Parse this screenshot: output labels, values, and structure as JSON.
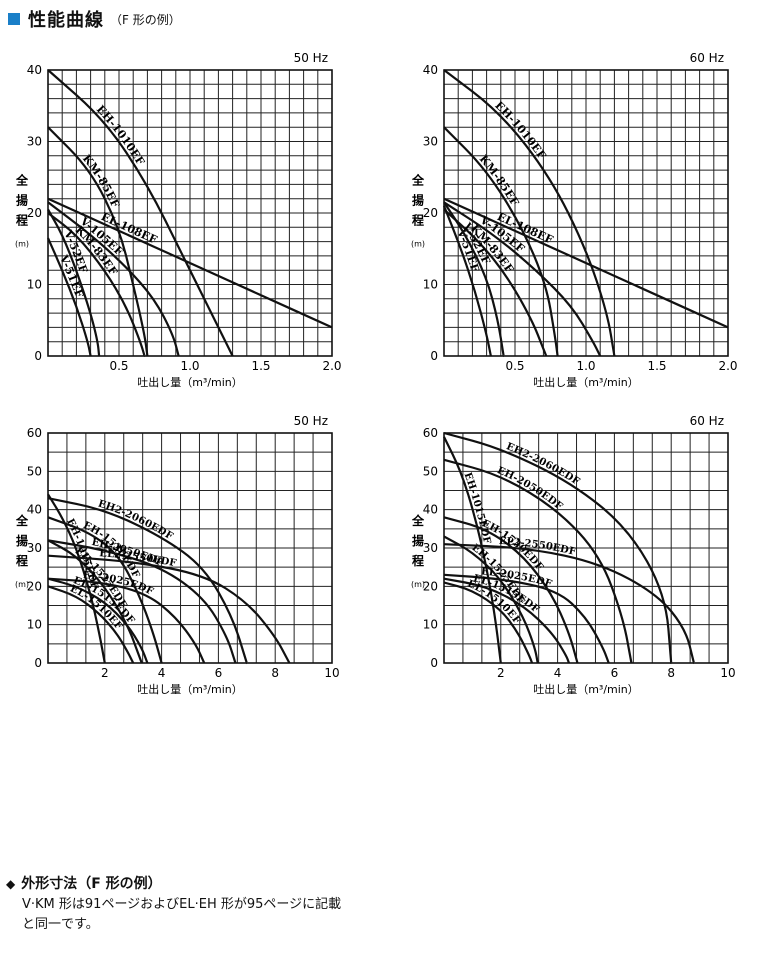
{
  "header": {
    "title": "性能曲線",
    "subtitle": "（F 形の例）",
    "icon": "blue-square-icon",
    "icon_color": "#1a7fc8"
  },
  "footer": {
    "bullet": "◆",
    "title": "外形寸法（F 形の例）",
    "line1": "V·KM 形は91ページおよびEL·EH 形が95ページに記載",
    "line2": "と同一です。"
  },
  "chart_data": [
    {
      "type": "line",
      "hz": "50 Hz",
      "xlabel": "吐出し量（m³/min）",
      "ylabel": "全揚程",
      "yunit": "(m)",
      "xlim": [
        0,
        2.0
      ],
      "ylim": [
        0,
        40
      ],
      "xticks": [
        "0.5",
        "1.0",
        "1.5",
        "2.0"
      ],
      "yticks": [
        "0",
        "10",
        "20",
        "30",
        "40"
      ],
      "grid": true,
      "series": [
        {
          "name": "KM-85EF",
          "points": [
            [
              0,
              32
            ],
            [
              0.3,
              26
            ],
            [
              0.5,
              18
            ],
            [
              0.6,
              10
            ],
            [
              0.68,
              3
            ],
            [
              0.7,
              0
            ]
          ]
        },
        {
          "name": "EH-1010EF",
          "points": [
            [
              0,
              40
            ],
            [
              0.4,
              33
            ],
            [
              0.7,
              24
            ],
            [
              0.95,
              14
            ],
            [
              1.15,
              6
            ],
            [
              1.3,
              0
            ]
          ]
        },
        {
          "name": "EL-108EF",
          "points": [
            [
              0,
              22
            ],
            [
              0.5,
              17.5
            ],
            [
              1.0,
              13
            ],
            [
              1.5,
              8.5
            ],
            [
              2.0,
              4
            ]
          ]
        },
        {
          "name": "V-105EF",
          "points": [
            [
              0,
              21.5
            ],
            [
              0.3,
              17
            ],
            [
              0.55,
              12.5
            ],
            [
              0.75,
              8
            ],
            [
              0.88,
              3
            ],
            [
              0.92,
              0
            ]
          ]
        },
        {
          "name": "KM-83EF",
          "points": [
            [
              0,
              20
            ],
            [
              0.2,
              17
            ],
            [
              0.4,
              12
            ],
            [
              0.55,
              7
            ],
            [
              0.65,
              2
            ],
            [
              0.68,
              0
            ]
          ]
        },
        {
          "name": "V-51EF",
          "points": [
            [
              0,
              16.5
            ],
            [
              0.1,
              12
            ],
            [
              0.2,
              7
            ],
            [
              0.28,
              2
            ],
            [
              0.3,
              0
            ]
          ]
        },
        {
          "name": "V-52EF",
          "points": [
            [
              0,
              20.5
            ],
            [
              0.1,
              17
            ],
            [
              0.2,
              12
            ],
            [
              0.3,
              6
            ],
            [
              0.35,
              2
            ],
            [
              0.36,
              0
            ]
          ]
        }
      ]
    },
    {
      "type": "line",
      "hz": "60 Hz",
      "xlabel": "吐出し量（m³/min）",
      "ylabel": "全揚程",
      "yunit": "(m)",
      "xlim": [
        0,
        2.0
      ],
      "ylim": [
        0,
        40
      ],
      "xticks": [
        "0.5",
        "1.0",
        "1.5",
        "2.0"
      ],
      "yticks": [
        "0",
        "10",
        "20",
        "30",
        "40"
      ],
      "grid": true,
      "series": [
        {
          "name": "KM-85EF",
          "points": [
            [
              0,
              32
            ],
            [
              0.3,
              26
            ],
            [
              0.55,
              18
            ],
            [
              0.72,
              10
            ],
            [
              0.78,
              3
            ],
            [
              0.8,
              0
            ]
          ]
        },
        {
          "name": "EH-1010EF",
          "points": [
            [
              0,
              40
            ],
            [
              0.4,
              34
            ],
            [
              0.75,
              25
            ],
            [
              1.0,
              15
            ],
            [
              1.15,
              6
            ],
            [
              1.2,
              0
            ]
          ]
        },
        {
          "name": "EL-108EF",
          "points": [
            [
              0,
              22
            ],
            [
              0.5,
              17.5
            ],
            [
              1.0,
              13
            ],
            [
              1.5,
              8.5
            ],
            [
              2.0,
              4
            ]
          ]
        },
        {
          "name": "V-105EF",
          "points": [
            [
              0,
              21.5
            ],
            [
              0.35,
              17
            ],
            [
              0.65,
              12
            ],
            [
              0.9,
              7
            ],
            [
              1.05,
              2
            ],
            [
              1.1,
              0
            ]
          ]
        },
        {
          "name": "KM-83EF",
          "points": [
            [
              0,
              20.5
            ],
            [
              0.25,
              16
            ],
            [
              0.45,
              11
            ],
            [
              0.62,
              5
            ],
            [
              0.7,
              1
            ],
            [
              0.72,
              0
            ]
          ]
        },
        {
          "name": "V-51EF",
          "points": [
            [
              0,
              21
            ],
            [
              0.12,
              15
            ],
            [
              0.22,
              9
            ],
            [
              0.3,
              3
            ],
            [
              0.33,
              0
            ]
          ]
        },
        {
          "name": "V-52EF",
          "points": [
            [
              0,
              21.5
            ],
            [
              0.15,
              17
            ],
            [
              0.3,
              11
            ],
            [
              0.38,
              5
            ],
            [
              0.42,
              0
            ]
          ]
        }
      ]
    },
    {
      "type": "line",
      "hz": "50 Hz",
      "xlabel": "吐出し量（m³/min）",
      "ylabel": "全揚程",
      "yunit": "(m)",
      "xlim": [
        0,
        10
      ],
      "ylim": [
        0,
        60
      ],
      "xticks": [
        "2",
        "4",
        "6",
        "8",
        "10"
      ],
      "yticks": [
        "0",
        "10",
        "20",
        "30",
        "40",
        "50",
        "60"
      ],
      "grid": true,
      "series": [
        {
          "name": "EH-1015EDF",
          "points": [
            [
              0,
              44
            ],
            [
              0.5,
              38
            ],
            [
              1.0,
              30
            ],
            [
              1.5,
              18
            ],
            [
              1.8,
              8
            ],
            [
              2.0,
              0
            ]
          ]
        },
        {
          "name": "EH2-2060EDF",
          "points": [
            [
              0,
              43
            ],
            [
              2,
              40
            ],
            [
              4,
              33
            ],
            [
              5.5,
              25
            ],
            [
              6.5,
              12
            ],
            [
              7.0,
              0
            ]
          ]
        },
        {
          "name": "EH-1530EDF",
          "points": [
            [
              0,
              38
            ],
            [
              1.5,
              34
            ],
            [
              2.5,
              28
            ],
            [
              3.2,
              18
            ],
            [
              3.7,
              8
            ],
            [
              4.0,
              0
            ]
          ]
        },
        {
          "name": "EH-1525EDF",
          "points": [
            [
              0,
              32
            ],
            [
              1,
              28
            ],
            [
              2,
              20
            ],
            [
              2.8,
              10
            ],
            [
              3.2,
              2
            ],
            [
              3.3,
              0
            ]
          ]
        },
        {
          "name": "EH-2050EDF",
          "points": [
            [
              0,
              32
            ],
            [
              2,
              29.5
            ],
            [
              4,
              25
            ],
            [
              5.5,
              17
            ],
            [
              6.3,
              7
            ],
            [
              6.6,
              0
            ]
          ]
        },
        {
          "name": "EL2-2550EDF",
          "points": [
            [
              0,
              28
            ],
            [
              3,
              26.5
            ],
            [
              5.5,
              23
            ],
            [
              7,
              16
            ],
            [
              8.0,
              7
            ],
            [
              8.5,
              0
            ]
          ]
        },
        {
          "name": "EL-2025EDF",
          "points": [
            [
              0,
              22
            ],
            [
              2,
              21
            ],
            [
              3.5,
              18
            ],
            [
              4.5,
              12
            ],
            [
              5.2,
              5
            ],
            [
              5.5,
              0
            ]
          ]
        },
        {
          "name": "EL-1515EDF",
          "points": [
            [
              0,
              22
            ],
            [
              1,
              20
            ],
            [
              2,
              16
            ],
            [
              2.8,
              10
            ],
            [
              3.3,
              4
            ],
            [
              3.5,
              0
            ]
          ]
        },
        {
          "name": "EL-1510EF",
          "points": [
            [
              0,
              20
            ],
            [
              1,
              17.5
            ],
            [
              1.8,
              13
            ],
            [
              2.4,
              8
            ],
            [
              2.8,
              3
            ],
            [
              3.0,
              0
            ]
          ]
        }
      ]
    },
    {
      "type": "line",
      "hz": "60 Hz",
      "xlabel": "吐出し量（m³/min）",
      "ylabel": "全揚程",
      "yunit": "(m)",
      "xlim": [
        0,
        10
      ],
      "ylim": [
        0,
        60
      ],
      "xticks": [
        "2",
        "4",
        "6",
        "8",
        "10"
      ],
      "yticks": [
        "0",
        "10",
        "20",
        "30",
        "40",
        "50",
        "60"
      ],
      "grid": true,
      "series": [
        {
          "name": "EH-1015EDF",
          "points": [
            [
              0,
              59
            ],
            [
              0.6,
              50
            ],
            [
              1.1,
              38
            ],
            [
              1.5,
              25
            ],
            [
              1.8,
              12
            ],
            [
              2.0,
              0
            ]
          ]
        },
        {
          "name": "EH2-2060EDF",
          "points": [
            [
              0,
              60
            ],
            [
              2,
              56
            ],
            [
              4.5,
              47
            ],
            [
              6.5,
              35
            ],
            [
              7.8,
              18
            ],
            [
              8.0,
              0
            ]
          ]
        },
        {
          "name": "EH-2050EDF",
          "points": [
            [
              0,
              53
            ],
            [
              2,
              49
            ],
            [
              4,
              40
            ],
            [
              5.5,
              28
            ],
            [
              6.3,
              12
            ],
            [
              6.6,
              0
            ]
          ]
        },
        {
          "name": "EH-1530EDF",
          "points": [
            [
              0,
              38
            ],
            [
              1.5,
              35
            ],
            [
              2.8,
              28
            ],
            [
              3.8,
              18
            ],
            [
              4.4,
              8
            ],
            [
              4.7,
              0
            ]
          ]
        },
        {
          "name": "EH-1525EDF",
          "points": [
            [
              0,
              33
            ],
            [
              1,
              29
            ],
            [
              2,
              22
            ],
            [
              2.8,
              12
            ],
            [
              3.2,
              4
            ],
            [
              3.3,
              0
            ]
          ]
        },
        {
          "name": "EL2-2550EDF",
          "points": [
            [
              0,
              31
            ],
            [
              3,
              30
            ],
            [
              5.5,
              26
            ],
            [
              7.5,
              18
            ],
            [
              8.5,
              9
            ],
            [
              8.8,
              0
            ]
          ]
        },
        {
          "name": "EL-2025EDF",
          "points": [
            [
              0,
              23
            ],
            [
              2,
              22
            ],
            [
              4,
              19
            ],
            [
              5,
              12
            ],
            [
              5.6,
              4
            ],
            [
              5.8,
              0
            ]
          ]
        },
        {
          "name": "EL-1515EDF",
          "points": [
            [
              0,
              22
            ],
            [
              1.5,
              20
            ],
            [
              2.8,
              15
            ],
            [
              3.8,
              8
            ],
            [
              4.3,
              2
            ],
            [
              4.4,
              0
            ]
          ]
        },
        {
          "name": "EL-1510EF",
          "points": [
            [
              0,
              21
            ],
            [
              1,
              19
            ],
            [
              2,
              14
            ],
            [
              2.6,
              8
            ],
            [
              3.0,
              2
            ],
            [
              3.1,
              0
            ]
          ]
        }
      ]
    }
  ]
}
